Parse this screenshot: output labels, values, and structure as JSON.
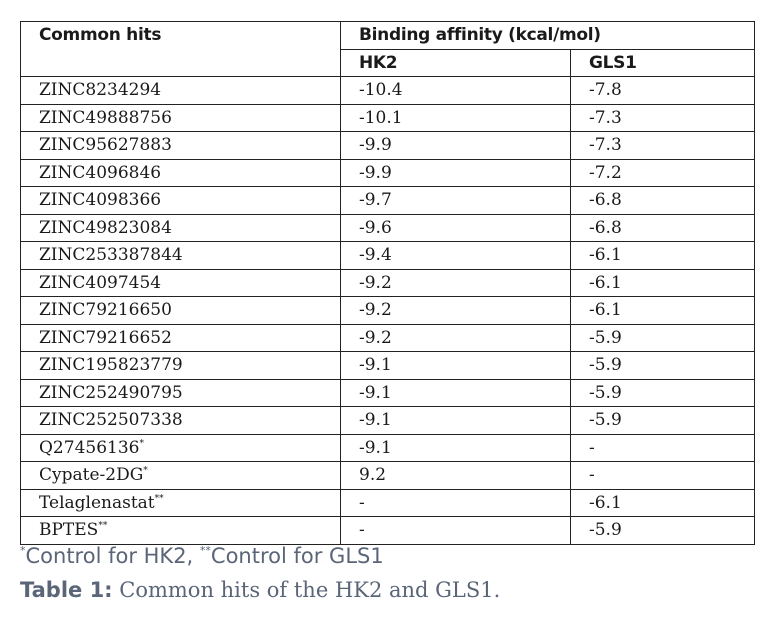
{
  "table": {
    "header": {
      "col1": "Common hits",
      "group": "Binding affinity (kcal/mol)",
      "sub1": "HK2",
      "sub2": "GLS1"
    },
    "rows": [
      {
        "hit": "ZINC8234294",
        "hk2": "-10.4",
        "gls1": "-7.8",
        "mark": ""
      },
      {
        "hit": "ZINC49888756",
        "hk2": "-10.1",
        "gls1": "-7.3",
        "mark": ""
      },
      {
        "hit": "ZINC95627883",
        "hk2": "-9.9",
        "gls1": "-7.3",
        "mark": ""
      },
      {
        "hit": "ZINC4096846",
        "hk2": "-9.9",
        "gls1": "-7.2",
        "mark": ""
      },
      {
        "hit": "ZINC4098366",
        "hk2": "-9.7",
        "gls1": "-6.8",
        "mark": ""
      },
      {
        "hit": "ZINC49823084",
        "hk2": "-9.6",
        "gls1": "-6.8",
        "mark": ""
      },
      {
        "hit": "ZINC253387844",
        "hk2": "-9.4",
        "gls1": "-6.1",
        "mark": ""
      },
      {
        "hit": "ZINC4097454",
        "hk2": "-9.2",
        "gls1": "-6.1",
        "mark": ""
      },
      {
        "hit": "ZINC79216650",
        "hk2": "-9.2",
        "gls1": "-6.1",
        "mark": ""
      },
      {
        "hit": "ZINC79216652",
        "hk2": "-9.2",
        "gls1": "-5.9",
        "mark": ""
      },
      {
        "hit": "ZINC195823779",
        "hk2": "-9.1",
        "gls1": "-5.9",
        "mark": ""
      },
      {
        "hit": "ZINC252490795",
        "hk2": "-9.1",
        "gls1": "-5.9",
        "mark": ""
      },
      {
        "hit": "ZINC252507338",
        "hk2": "-9.1",
        "gls1": "-5.9",
        "mark": ""
      },
      {
        "hit": "Q27456136",
        "hk2": "-9.1",
        "gls1": "-",
        "mark": "*"
      },
      {
        "hit": "Cypate-2DG",
        "hk2": "9.2",
        "gls1": "-",
        "mark": "*"
      },
      {
        "hit": "Telaglenastat",
        "hk2": "-",
        "gls1": "-6.1",
        "mark": "**"
      },
      {
        "hit": "BPTES",
        "hk2": "-",
        "gls1": "-5.9",
        "mark": "**"
      }
    ]
  },
  "footnote": {
    "mark1": "*",
    "text1": "Control for HK2, ",
    "mark2": "**",
    "text2": "Control for GLS1"
  },
  "caption": {
    "label": "Table 1:",
    "text": " Common hits of the HK2 and GLS1."
  }
}
